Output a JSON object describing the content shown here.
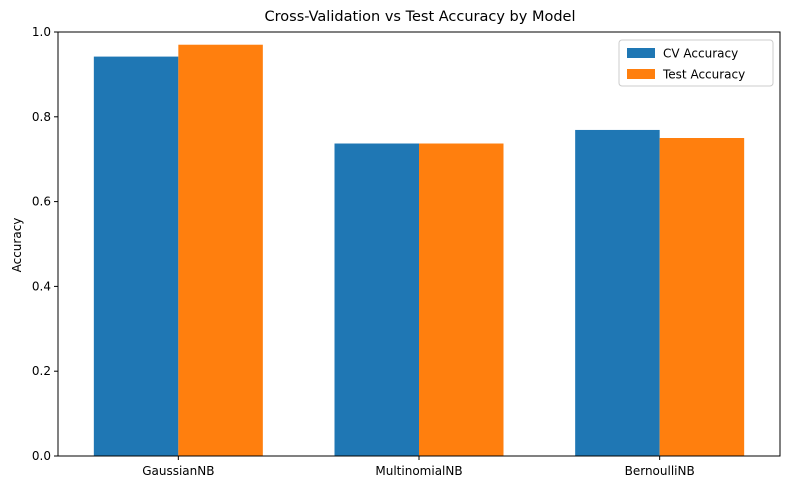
{
  "chart_data": {
    "type": "bar",
    "title": "Cross-Validation vs Test Accuracy by Model",
    "xlabel": "",
    "ylabel": "Accuracy",
    "categories": [
      "GaussianNB",
      "MultinomialNB",
      "BernoulliNB"
    ],
    "series": [
      {
        "name": "CV Accuracy",
        "color": "#1f77b4",
        "values": [
          0.942,
          0.737,
          0.769
        ]
      },
      {
        "name": "Test Accuracy",
        "color": "#ff7f0e",
        "values": [
          0.97,
          0.737,
          0.75
        ]
      }
    ],
    "ylim": [
      0,
      1.0
    ],
    "yticks": [
      "0.0",
      "0.2",
      "0.4",
      "0.6",
      "0.8",
      "1.0"
    ],
    "grid": false,
    "legend_position": "top-right"
  }
}
